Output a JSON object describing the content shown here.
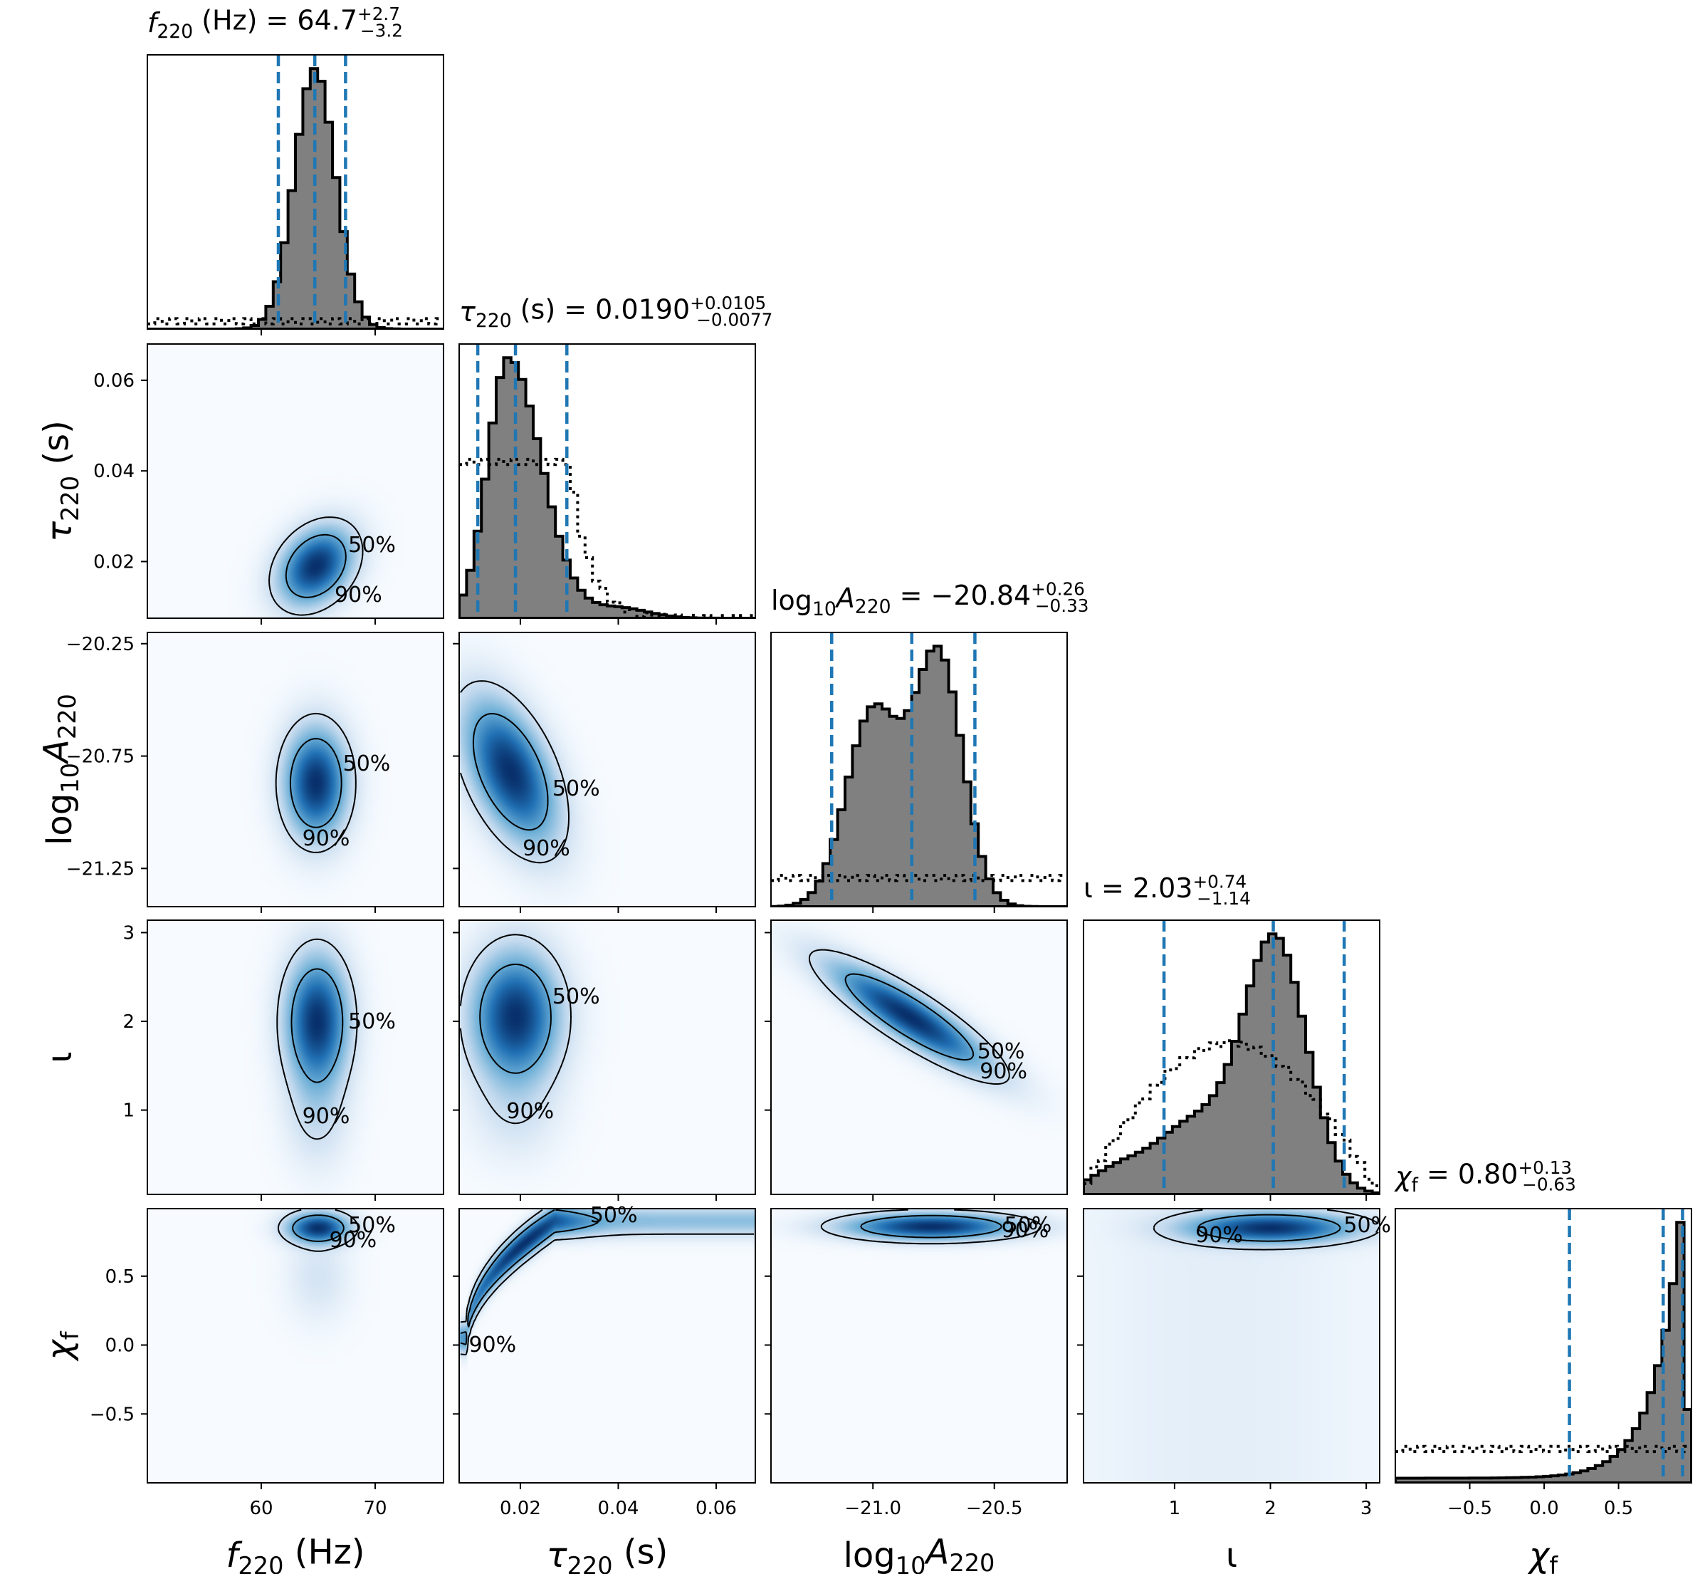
{
  "chart_data": {
    "type": "corner",
    "colors": {
      "histogram_fill": "#808080",
      "histogram_edge": "#000000",
      "quantile_lines": "#1f77b4",
      "density_low": "#f7fbff",
      "density_high": "#08306b",
      "contour": "#000000"
    },
    "contour_levels": [
      "50%",
      "90%"
    ],
    "quantiles": "dashed blue vertical lines (lower, median, upper)",
    "prior": "dotted black histogram",
    "parameters": [
      {
        "key": "f220",
        "title_name": "f",
        "title_sub": "220",
        "title_unit": "(Hz)",
        "title_value": "64.7",
        "title_plus": "+2.7",
        "title_minus": "−3.2",
        "axis_name": "f",
        "axis_sub": "220",
        "axis_unit": "(Hz)",
        "range": [
          50,
          76
        ],
        "ticks": [
          60,
          70
        ],
        "tick_labels": [
          "60",
          "70"
        ],
        "median": 64.7,
        "lower": 61.5,
        "upper": 67.4,
        "posterior": {
          "mu": 64.7,
          "sigma": 1.8
        },
        "prior_level": 0.03
      },
      {
        "key": "tau220",
        "title_name": "τ",
        "title_sub": "220",
        "title_unit": "(s)",
        "title_value": "0.0190",
        "title_plus": "+0.0105",
        "title_minus": "−0.0077",
        "axis_name": "τ",
        "axis_sub": "220",
        "axis_unit": "(s)",
        "range": [
          0.0075,
          0.068
        ],
        "ticks": [
          0.02,
          0.04,
          0.06
        ],
        "tick_labels": [
          "0.02",
          "0.04",
          "0.06"
        ],
        "median": 0.019,
        "lower": 0.0113,
        "upper": 0.0295,
        "posterior": {
          "mu": 0.0175,
          "sigma_left": 0.0042,
          "sigma_right": 0.0068
        },
        "prior_level": 0.62
      },
      {
        "key": "logA220",
        "title_name": "log",
        "title_sub": "10",
        "title_name2": "A",
        "title_sub2": "220",
        "title_value": "−20.84",
        "title_plus": "+0.26",
        "title_minus": "−0.33",
        "axis_name": "log",
        "axis_sub": "10",
        "axis_name2": "A",
        "axis_sub2": "220",
        "range": [
          -21.42,
          -20.2
        ],
        "ticks": [
          -21.25,
          -20.75,
          -20.25
        ],
        "tick_labels": [
          "−21.25",
          "−20.75",
          "−20.25"
        ],
        "bottom_ticks": [
          -21.0,
          -20.5
        ],
        "bottom_tick_labels": [
          "−21.0",
          "−20.5"
        ],
        "median": -20.84,
        "lower": -21.17,
        "upper": -20.58,
        "posterior": {
          "mu": -20.84,
          "sigma": 0.2
        },
        "prior_level": 0.11
      },
      {
        "key": "iota",
        "title_name": "ι",
        "title_value": "2.03",
        "title_plus": "+0.74",
        "title_minus": "−1.14",
        "axis_name": "ι",
        "range": [
          0.05,
          3.14
        ],
        "ticks": [
          1,
          2,
          3
        ],
        "tick_labels": [
          "1",
          "2",
          "3"
        ],
        "median": 2.03,
        "lower": 0.89,
        "upper": 2.77,
        "posterior": {
          "mu": 2.03,
          "sigma": 0.45
        },
        "prior_level": 0.55
      },
      {
        "key": "chif",
        "title_name": "χ",
        "title_sub": "f",
        "title_value": "0.80",
        "title_plus": "+0.13",
        "title_minus": "−0.63",
        "axis_name": "χ",
        "axis_sub": "f",
        "range": [
          -1.0,
          0.99
        ],
        "ticks": [
          -0.5,
          0.0,
          0.5
        ],
        "tick_labels": [
          "−0.5",
          "0.0",
          "0.5"
        ],
        "median": 0.8,
        "lower": 0.17,
        "upper": 0.93,
        "posterior": {
          "mu": 0.9,
          "sigma": 0.06
        },
        "prior_level": 0.13
      }
    ]
  }
}
